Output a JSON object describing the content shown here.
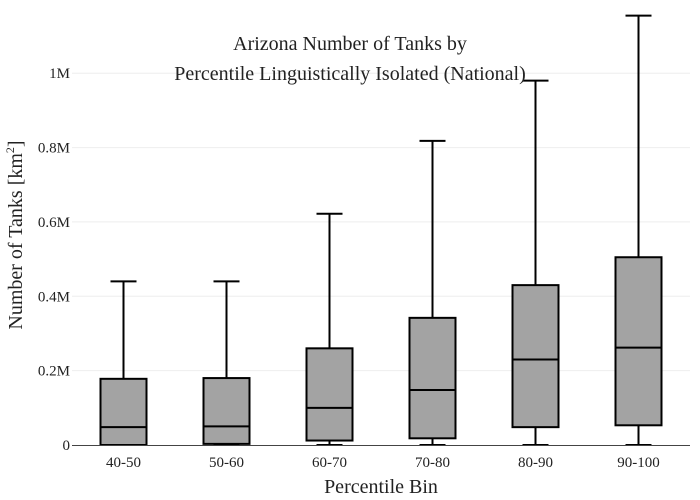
{
  "chart_data": {
    "type": "box",
    "title_lines": [
      "Arizona Number of Tanks by",
      "Percentile Linguistically Isolated (National)"
    ],
    "xlabel": "Percentile Bin",
    "ylabel": {
      "main": "Number of Tanks  [km",
      "sup": "2",
      "close": "]"
    },
    "ylim": [
      0,
      1170000
    ],
    "y_ticks": [
      {
        "value": 0,
        "label": "0"
      },
      {
        "value": 200000,
        "label": "0.2M"
      },
      {
        "value": 400000,
        "label": "0.4M"
      },
      {
        "value": 600000,
        "label": "0.6M"
      },
      {
        "value": 800000,
        "label": "0.8M"
      },
      {
        "value": 1000000,
        "label": "1M"
      }
    ],
    "grid": true,
    "categories": [
      "40-50",
      "50-60",
      "60-70",
      "70-80",
      "80-90",
      "90-100"
    ],
    "boxes": [
      {
        "category": "40-50",
        "min": 0,
        "q1": 0,
        "median": 48000,
        "q3": 178000,
        "max": 440000
      },
      {
        "category": "50-60",
        "min": 0,
        "q1": 3000,
        "median": 50000,
        "q3": 180000,
        "max": 440000
      },
      {
        "category": "60-70",
        "min": 0,
        "q1": 12000,
        "median": 100000,
        "q3": 260000,
        "max": 622000
      },
      {
        "category": "70-80",
        "min": 0,
        "q1": 18000,
        "median": 148000,
        "q3": 342000,
        "max": 818000
      },
      {
        "category": "80-90",
        "min": 0,
        "q1": 48000,
        "median": 230000,
        "q3": 430000,
        "max": 980000
      },
      {
        "category": "90-100",
        "min": 0,
        "q1": 53000,
        "median": 262000,
        "q3": 505000,
        "max": 1155000
      }
    ],
    "colors": {
      "box_fill": "#a3a3a3",
      "box_stroke": "#000000",
      "grid": "#eeeeee",
      "axis": "#444444"
    }
  }
}
